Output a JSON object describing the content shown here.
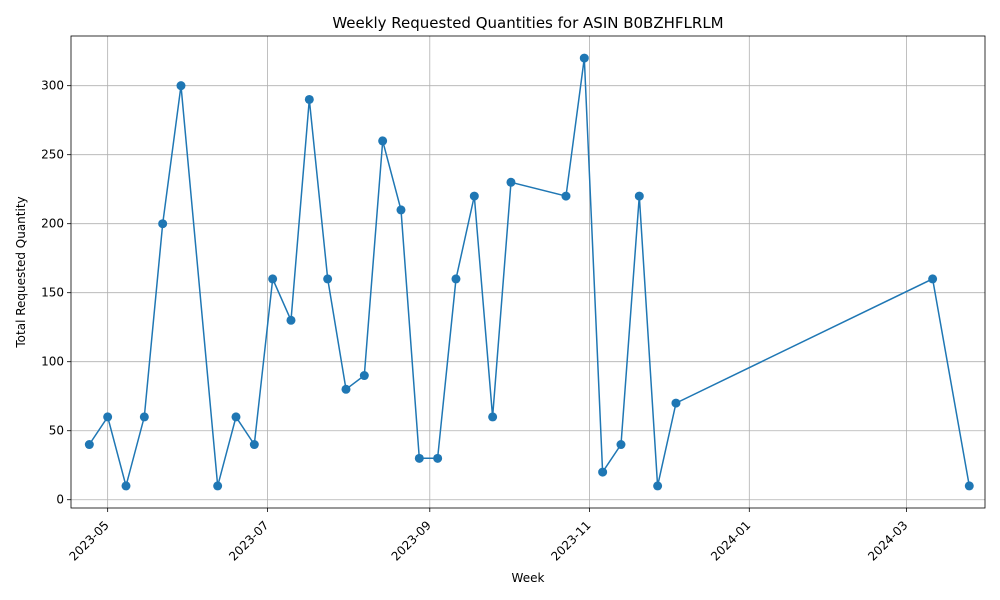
{
  "chart_data": {
    "type": "line",
    "title": "Weekly Requested Quantities for ASIN B0BZHFLRLM",
    "xlabel": "Week",
    "ylabel": "Total Requested Quantity",
    "x_ticks": [
      "2023-05",
      "2023-07",
      "2023-09",
      "2023-11",
      "2024-01",
      "2024-03"
    ],
    "y_ticks": [
      "0",
      "50",
      "100",
      "150",
      "200",
      "250",
      "300"
    ],
    "xlim": [
      "2023-04-17",
      "2024-03-31"
    ],
    "ylim": [
      -6,
      336
    ],
    "grid": true,
    "series_color": "#1f77b4",
    "series": [
      {
        "points": [
          {
            "x": "2023-04-24",
            "y": 40
          },
          {
            "x": "2023-05-01",
            "y": 60
          },
          {
            "x": "2023-05-08",
            "y": 10
          },
          {
            "x": "2023-05-15",
            "y": 60
          },
          {
            "x": "2023-05-22",
            "y": 200
          },
          {
            "x": "2023-05-29",
            "y": 300
          },
          {
            "x": "2023-06-12",
            "y": 10
          },
          {
            "x": "2023-06-19",
            "y": 60
          },
          {
            "x": "2023-06-26",
            "y": 40
          },
          {
            "x": "2023-07-03",
            "y": 160
          },
          {
            "x": "2023-07-10",
            "y": 130
          },
          {
            "x": "2023-07-17",
            "y": 290
          },
          {
            "x": "2023-07-24",
            "y": 160
          },
          {
            "x": "2023-07-31",
            "y": 80
          },
          {
            "x": "2023-08-07",
            "y": 90
          },
          {
            "x": "2023-08-14",
            "y": 260
          },
          {
            "x": "2023-08-21",
            "y": 210
          },
          {
            "x": "2023-08-28",
            "y": 30
          },
          {
            "x": "2023-09-04",
            "y": 30
          },
          {
            "x": "2023-09-11",
            "y": 160
          },
          {
            "x": "2023-09-18",
            "y": 220
          },
          {
            "x": "2023-09-25",
            "y": 60
          },
          {
            "x": "2023-10-02",
            "y": 230
          },
          {
            "x": "2023-10-23",
            "y": 220
          },
          {
            "x": "2023-10-30",
            "y": 320
          },
          {
            "x": "2023-11-06",
            "y": 20
          },
          {
            "x": "2023-11-13",
            "y": 40
          },
          {
            "x": "2023-11-20",
            "y": 220
          },
          {
            "x": "2023-11-27",
            "y": 10
          },
          {
            "x": "2023-12-04",
            "y": 70
          },
          {
            "x": "2024-03-11",
            "y": 160
          },
          {
            "x": "2024-03-25",
            "y": 10
          }
        ]
      }
    ]
  }
}
